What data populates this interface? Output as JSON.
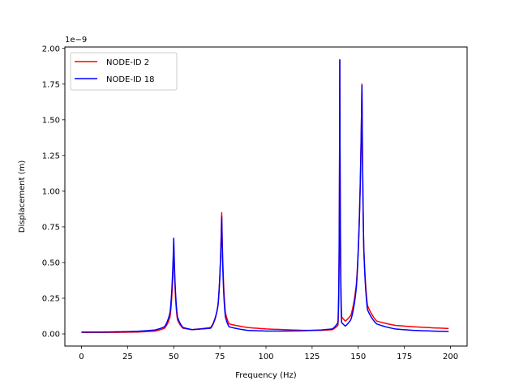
{
  "chart_data": {
    "type": "line",
    "title": "",
    "xlabel": "Frequency (Hz)",
    "ylabel": "Displacement (m)",
    "y_scale_offset_text": "1e−9",
    "xlim": [
      -9,
      209
    ],
    "ylim": [
      -0.085,
      2.01
    ],
    "x_ticks": [
      0,
      25,
      50,
      75,
      100,
      125,
      150,
      175,
      200
    ],
    "x_tick_labels": [
      "0",
      "25",
      "50",
      "75",
      "100",
      "125",
      "150",
      "175",
      "200"
    ],
    "y_ticks": [
      0.0,
      0.25,
      0.5,
      0.75,
      1.0,
      1.25,
      1.5,
      1.75,
      2.0
    ],
    "y_tick_labels": [
      "0.00",
      "0.25",
      "0.50",
      "0.75",
      "1.00",
      "1.25",
      "1.50",
      "1.75",
      "2.00"
    ],
    "grid": false,
    "legend_position": "upper left",
    "x": [
      0,
      10,
      20,
      30,
      40,
      45,
      48,
      50,
      52,
      55,
      60,
      70,
      74,
      76,
      78,
      80,
      90,
      100,
      110,
      120,
      130,
      136,
      139,
      140,
      141,
      143,
      146,
      149,
      151,
      152,
      153,
      155,
      160,
      170,
      180,
      190,
      199
    ],
    "series": [
      {
        "name": "NODE-ID 2",
        "color": "#ff0000",
        "values": [
          0.01,
          0.01,
          0.011,
          0.013,
          0.02,
          0.04,
          0.12,
          0.62,
          0.1,
          0.04,
          0.03,
          0.045,
          0.2,
          0.85,
          0.15,
          0.07,
          0.045,
          0.035,
          0.03,
          0.025,
          0.025,
          0.03,
          0.06,
          1.92,
          0.12,
          0.09,
          0.13,
          0.35,
          1.0,
          1.75,
          0.6,
          0.2,
          0.09,
          0.06,
          0.05,
          0.043,
          0.038
        ]
      },
      {
        "name": "NODE-ID 18",
        "color": "#0000ff",
        "values": [
          0.013,
          0.013,
          0.015,
          0.018,
          0.028,
          0.05,
          0.15,
          0.67,
          0.12,
          0.045,
          0.03,
          0.04,
          0.2,
          0.82,
          0.12,
          0.05,
          0.025,
          0.02,
          0.02,
          0.022,
          0.028,
          0.035,
          0.08,
          1.92,
          0.08,
          0.055,
          0.1,
          0.33,
          1.0,
          1.74,
          0.6,
          0.17,
          0.07,
          0.035,
          0.025,
          0.02,
          0.017
        ]
      }
    ],
    "annotations": []
  },
  "legend": {
    "items": [
      {
        "label": "NODE-ID 2",
        "color": "#ff0000"
      },
      {
        "label": "NODE-ID 18",
        "color": "#0000ff"
      }
    ]
  }
}
